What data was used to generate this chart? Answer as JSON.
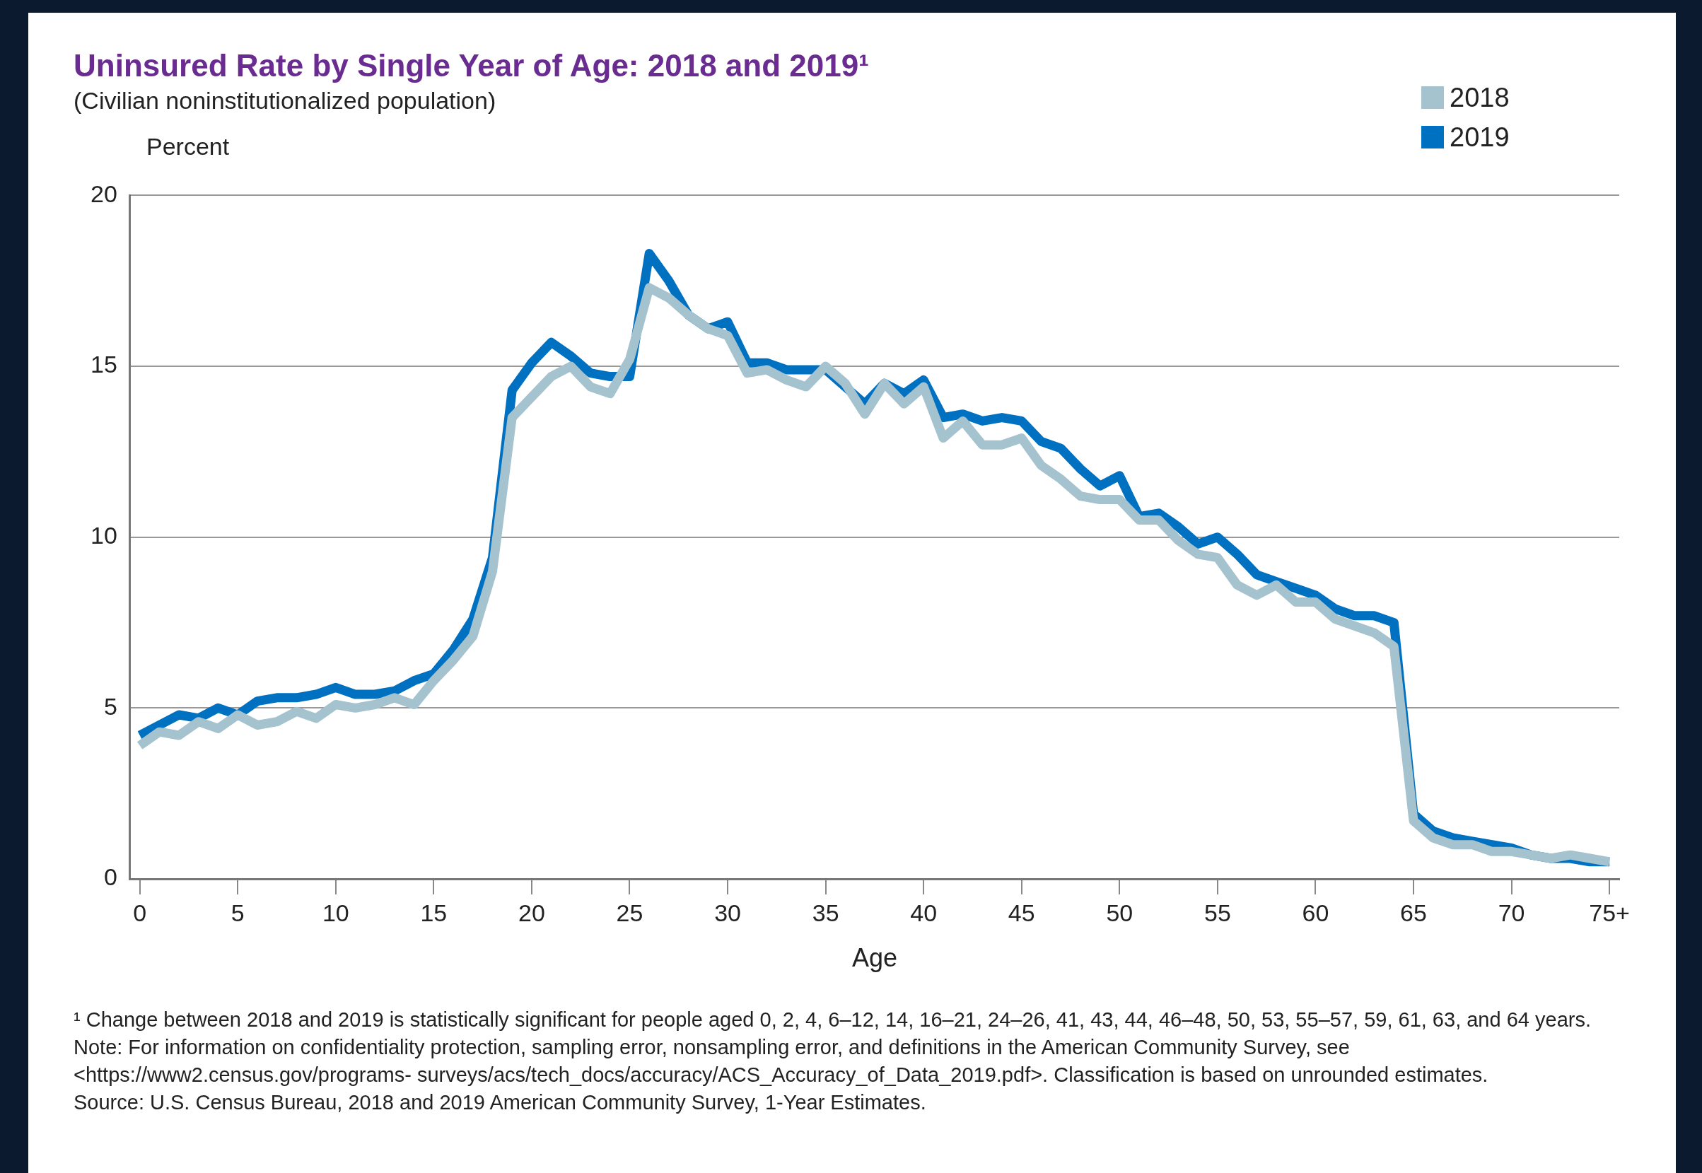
{
  "chart_data": {
    "type": "line",
    "title": "Uninsured Rate by Single Year of Age: 2018 and 2019¹",
    "subtitle": "(Civilian noninstitutionalized population)",
    "xlabel": "Age",
    "ylabel": "Percent",
    "x": [
      0,
      1,
      2,
      3,
      4,
      5,
      6,
      7,
      8,
      9,
      10,
      11,
      12,
      13,
      14,
      15,
      16,
      17,
      18,
      19,
      20,
      21,
      22,
      23,
      24,
      25,
      26,
      27,
      28,
      29,
      30,
      31,
      32,
      33,
      34,
      35,
      36,
      37,
      38,
      39,
      40,
      41,
      42,
      43,
      44,
      45,
      46,
      47,
      48,
      49,
      50,
      51,
      52,
      53,
      54,
      55,
      56,
      57,
      58,
      59,
      60,
      61,
      62,
      63,
      64,
      65,
      66,
      67,
      68,
      69,
      70,
      71,
      72,
      73,
      74,
      75
    ],
    "series": [
      {
        "name": "2018",
        "color": "#a5c2cf",
        "values": [
          3.9,
          4.3,
          4.2,
          4.6,
          4.4,
          4.8,
          4.5,
          4.6,
          4.9,
          4.7,
          5.1,
          5.0,
          5.1,
          5.3,
          5.1,
          5.8,
          6.4,
          7.1,
          9.0,
          13.5,
          14.1,
          14.7,
          15.0,
          14.4,
          14.2,
          15.2,
          17.3,
          17.0,
          16.5,
          16.1,
          15.9,
          14.8,
          14.9,
          14.6,
          14.4,
          15.0,
          14.5,
          13.6,
          14.5,
          13.9,
          14.4,
          12.9,
          13.4,
          12.7,
          12.7,
          12.9,
          12.1,
          11.7,
          11.2,
          11.1,
          11.1,
          10.5,
          10.5,
          9.9,
          9.5,
          9.4,
          8.6,
          8.3,
          8.6,
          8.1,
          8.1,
          7.6,
          7.4,
          7.2,
          6.8,
          1.7,
          1.2,
          1.0,
          1.0,
          0.8,
          0.8,
          0.7,
          0.6,
          0.7,
          0.6,
          0.5
        ]
      },
      {
        "name": "2019",
        "color": "#0070c0",
        "values": [
          4.2,
          4.5,
          4.8,
          4.7,
          5.0,
          4.8,
          5.2,
          5.3,
          5.3,
          5.4,
          5.6,
          5.4,
          5.4,
          5.5,
          5.8,
          6.0,
          6.7,
          7.6,
          9.4,
          14.3,
          15.1,
          15.7,
          15.3,
          14.8,
          14.7,
          14.7,
          18.3,
          17.5,
          16.5,
          16.1,
          16.3,
          15.1,
          15.1,
          14.9,
          14.9,
          14.9,
          14.4,
          13.9,
          14.5,
          14.2,
          14.6,
          13.5,
          13.6,
          13.4,
          13.5,
          13.4,
          12.8,
          12.6,
          12.0,
          11.5,
          11.8,
          10.6,
          10.7,
          10.3,
          9.8,
          10.0,
          9.5,
          8.9,
          8.7,
          8.5,
          8.3,
          7.9,
          7.7,
          7.7,
          7.5,
          1.9,
          1.4,
          1.2,
          1.1,
          1.0,
          0.9,
          0.7,
          0.6,
          0.6,
          0.5,
          0.5
        ]
      }
    ],
    "xlim": [
      -0.5,
      75.5
    ],
    "xticks": [
      0,
      5,
      10,
      15,
      20,
      25,
      30,
      35,
      40,
      45,
      50,
      55,
      60,
      65,
      70,
      {
        "value": 75,
        "label": "75+"
      }
    ],
    "ylim": [
      0,
      20
    ],
    "yticks": [
      0,
      5,
      10,
      15,
      20
    ],
    "grid": "y",
    "legend": "top right",
    "marker": "none",
    "line_style": "solid",
    "annotations": [
      "¹ Change between 2018 and 2019 is statistically significant for people aged 0, 2, 4, 6–12, 14, 16–21, 24–26, 41, 43, 44, 46–48, 50, 53, 55–57, 59, 61, 63, and 64 years.",
      "Note: For information on confidentiality protection, sampling error, nonsampling error, and definitions in the American Community Survey, see <https://www2.census.gov/programs- surveys/acs/tech_docs/accuracy/ACS_Accuracy_of_Data_2019.pdf>. Classification is based on unrounded estimates.",
      "Source: U.S. Census Bureau, 2018 and 2019 American Community Survey, 1-Year Estimates."
    ]
  }
}
